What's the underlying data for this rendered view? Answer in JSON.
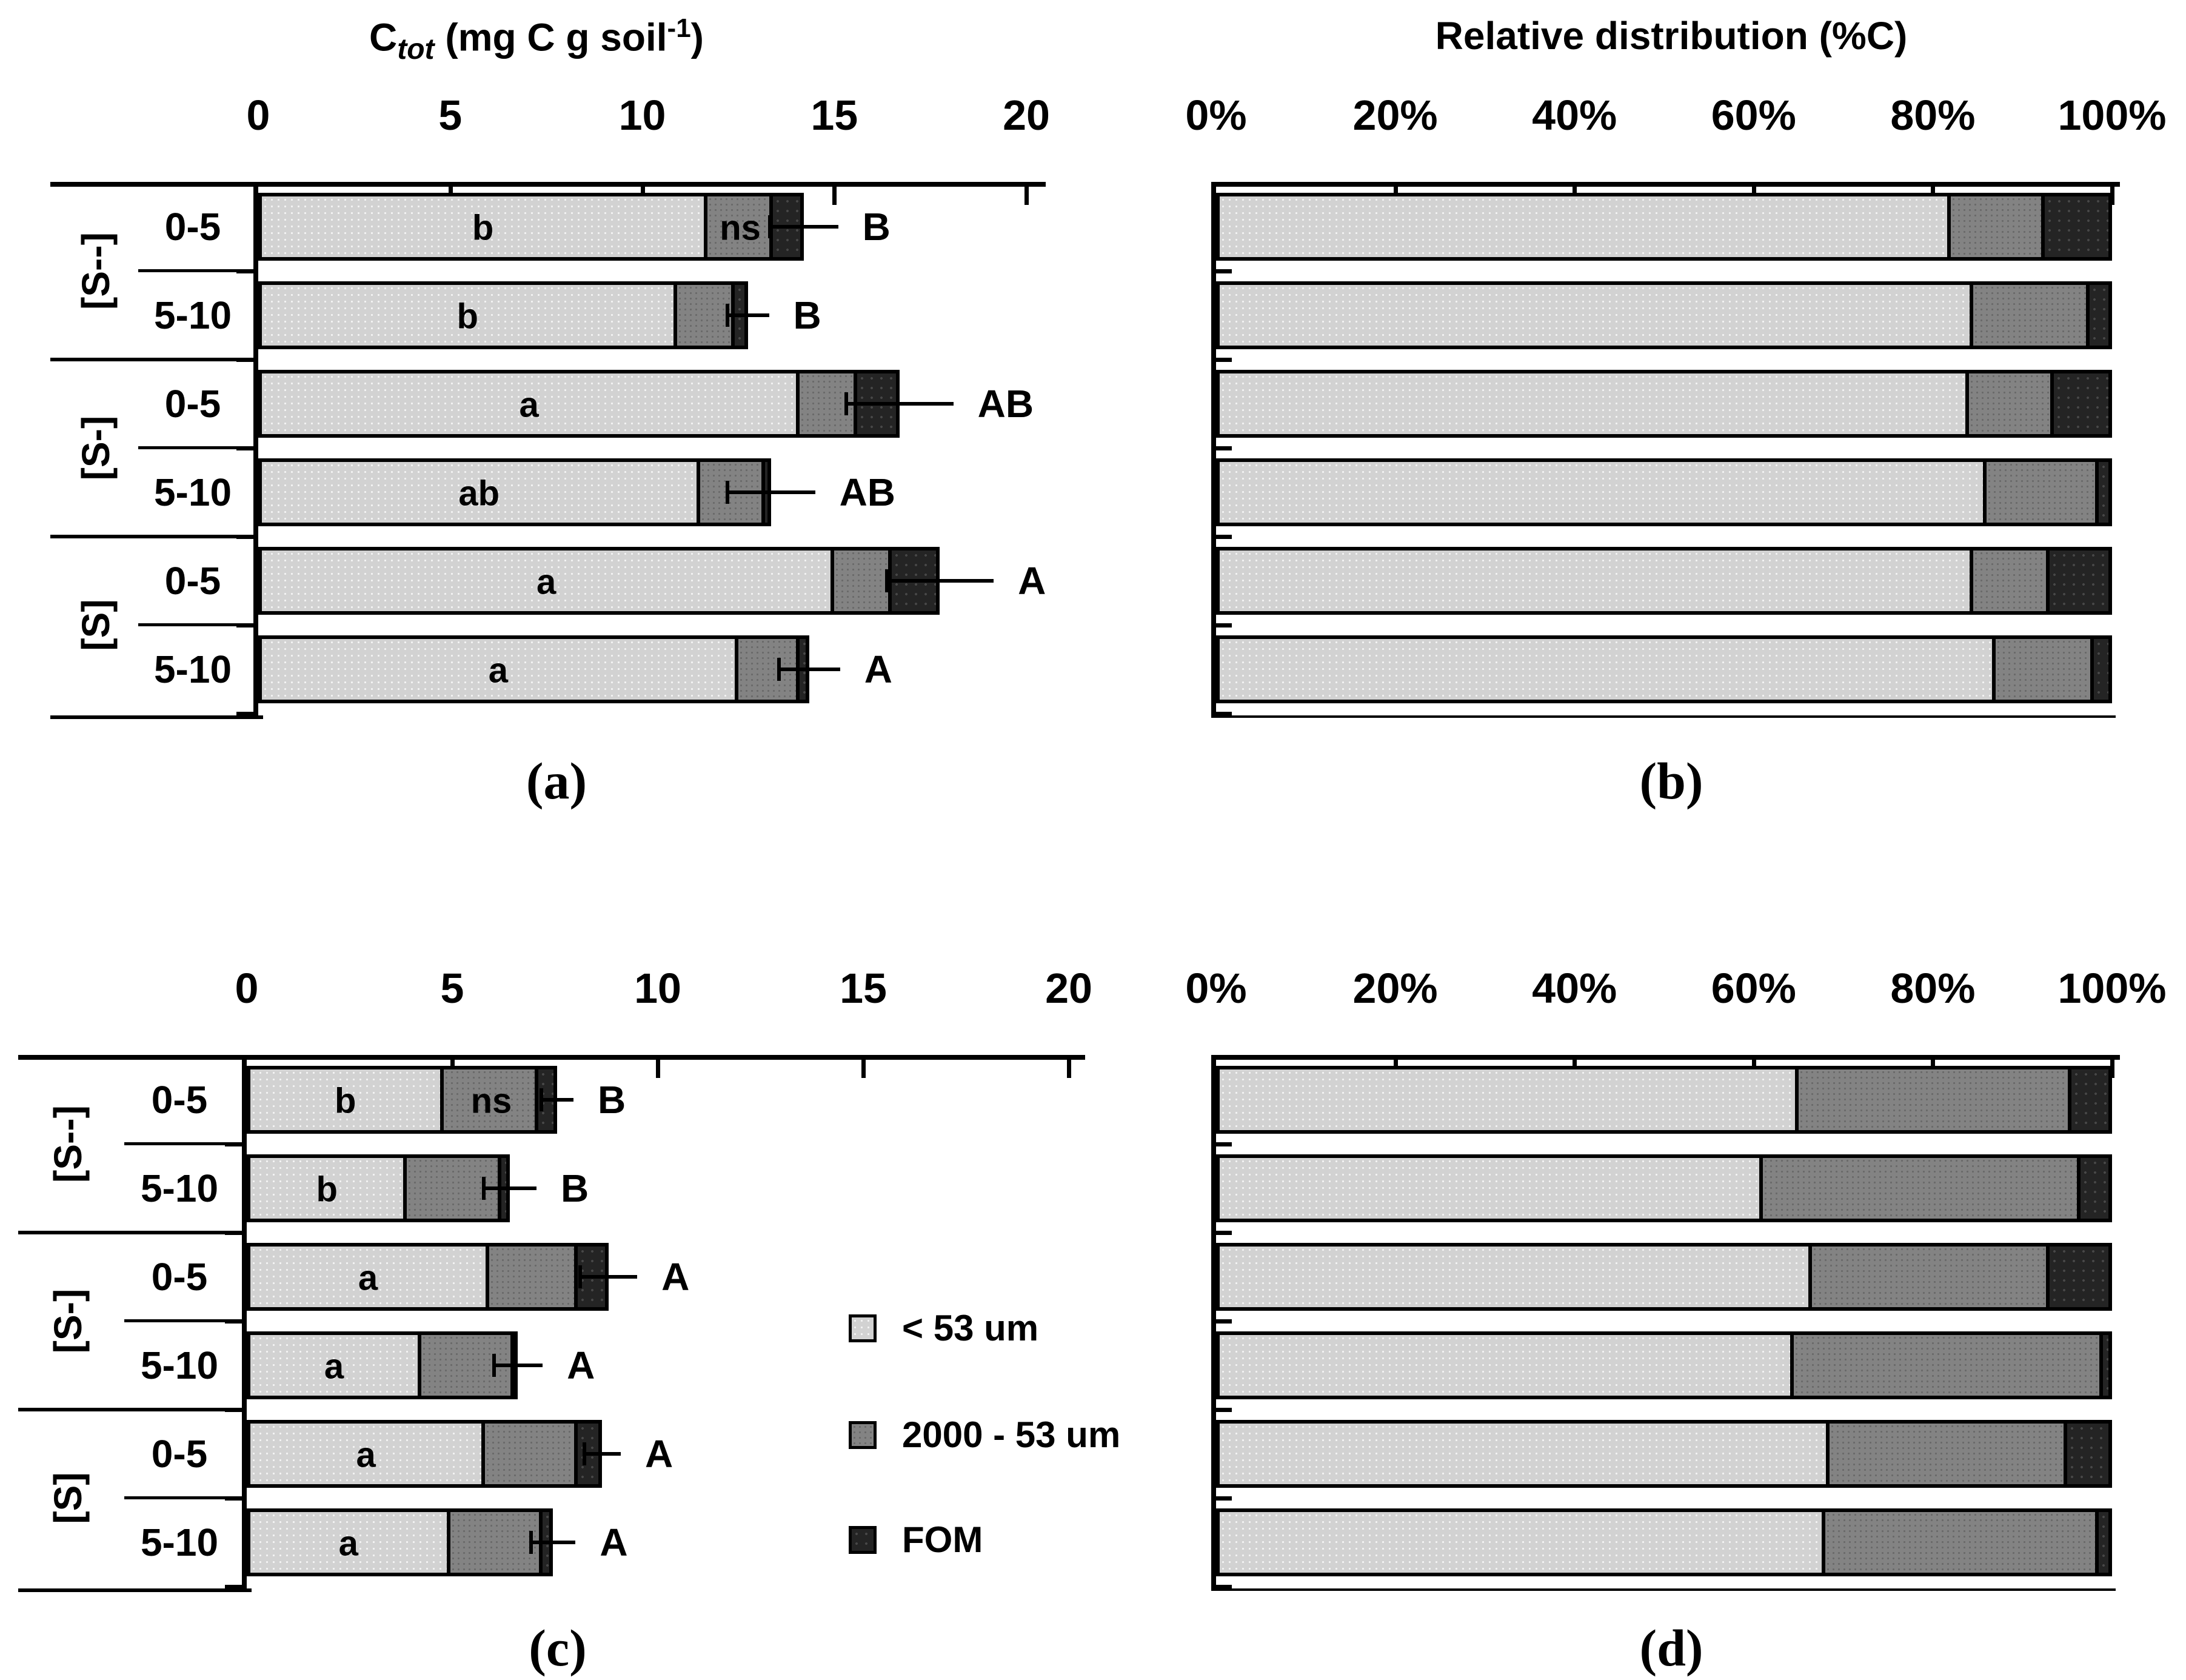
{
  "colors": {
    "light": "#d2d2d2",
    "mid": "#838383",
    "dark": "#242424",
    "axis": "#000000"
  },
  "titles": {
    "a": {
      "base": "C",
      "sub": "tot",
      "unit": " (mg C g soil",
      "sup": "-1",
      "close": ")"
    },
    "b": "Relative distribution (%C)"
  },
  "row_labels": {
    "groups": [
      "[S--]",
      "[S-]",
      "[S]"
    ],
    "depths": [
      "0-5",
      "5-10"
    ]
  },
  "legend": {
    "items": [
      {
        "key": "light",
        "label": "< 53 um"
      },
      {
        "key": "mid",
        "label": "2000 - 53 um"
      },
      {
        "key": "dark",
        "label": "FOM"
      }
    ]
  },
  "chart_data": [
    {
      "id": "a",
      "tag": "(a)",
      "type": "bar",
      "stacked": true,
      "orientation": "horizontal",
      "title": "Ctot (mg C g soil-1)",
      "xlim": [
        0,
        20
      ],
      "tick_values": [
        0,
        5,
        10,
        15,
        20
      ],
      "tick_labels": [
        "0",
        "5",
        "10",
        "15",
        "20"
      ],
      "categories": [
        "[S--] 0-5",
        "[S--] 5-10",
        "[S-] 0-5",
        "[S-] 5-10",
        "[S] 0-5",
        "[S] 5-10"
      ],
      "series": [
        {
          "name": "< 53 um",
          "values": [
            11.7,
            10.9,
            14.1,
            11.5,
            15.0,
            12.5
          ]
        },
        {
          "name": "2000 - 53 um",
          "values": [
            1.7,
            1.5,
            1.5,
            1.7,
            1.5,
            1.6
          ]
        },
        {
          "name": "FOM",
          "values": [
            0.8,
            0.35,
            1.1,
            0.15,
            1.25,
            0.25
          ]
        }
      ],
      "errors": [
        0.9,
        0.55,
        1.4,
        1.15,
        1.4,
        0.8
      ],
      "bar_letters": [
        [
          "b",
          "ns"
        ],
        [
          "b"
        ],
        [
          "a"
        ],
        [
          "ab"
        ],
        [
          "a"
        ],
        [
          "a"
        ]
      ],
      "sig_letters": [
        "B",
        "B",
        "AB",
        "AB",
        "A",
        "A"
      ]
    },
    {
      "id": "b",
      "tag": "(b)",
      "type": "bar",
      "stacked": true,
      "orientation": "horizontal",
      "title": "Relative distribution (%C)",
      "xlim": [
        0,
        100
      ],
      "tick_values": [
        0,
        20,
        40,
        60,
        80,
        100
      ],
      "tick_labels": [
        "0%",
        "20%",
        "40%",
        "60%",
        "80%",
        "100%"
      ],
      "categories": [
        "[S--] 0-5",
        "[S--] 5-10",
        "[S-] 0-5",
        "[S-] 5-10",
        "[S] 0-5",
        "[S] 5-10"
      ],
      "series": [
        {
          "name": "< 53 um",
          "values": [
            82,
            84.5,
            84,
            86,
            84.5,
            87
          ]
        },
        {
          "name": "2000 - 53 um",
          "values": [
            10.5,
            13,
            9.5,
            12.5,
            8.5,
            11
          ]
        },
        {
          "name": "FOM",
          "values": [
            7.5,
            2.5,
            6.5,
            1.5,
            7,
            2
          ]
        }
      ],
      "errors": [],
      "bar_letters": [],
      "sig_letters": []
    },
    {
      "id": "c",
      "tag": "(c)",
      "type": "bar",
      "stacked": true,
      "orientation": "horizontal",
      "title": "",
      "xlim": [
        0,
        20
      ],
      "tick_values": [
        0,
        5,
        10,
        15,
        20
      ],
      "tick_labels": [
        "0",
        "5",
        "10",
        "15",
        "20"
      ],
      "categories": [
        "[S--] 0-5",
        "[S--] 5-10",
        "[S-] 0-5",
        "[S-] 5-10",
        "[S] 0-5",
        "[S] 5-10"
      ],
      "series": [
        {
          "name": "< 53 um",
          "values": [
            4.8,
            3.9,
            5.9,
            4.25,
            5.8,
            4.95
          ]
        },
        {
          "name": "2000 - 53 um",
          "values": [
            2.3,
            2.3,
            2.15,
            2.25,
            2.25,
            2.25
          ]
        },
        {
          "name": "FOM",
          "values": [
            0.45,
            0.2,
            0.75,
            0.1,
            0.6,
            0.25
          ]
        }
      ],
      "errors": [
        0.4,
        0.65,
        0.7,
        0.6,
        0.45,
        0.55
      ],
      "bar_letters": [
        [
          "b",
          "ns"
        ],
        [
          "b"
        ],
        [
          "a"
        ],
        [
          "a"
        ],
        [
          "a"
        ],
        [
          "a"
        ]
      ],
      "sig_letters": [
        "B",
        "B",
        "A",
        "A",
        "A",
        "A"
      ]
    },
    {
      "id": "d",
      "tag": "(d)",
      "type": "bar",
      "stacked": true,
      "orientation": "horizontal",
      "title": "",
      "xlim": [
        0,
        100
      ],
      "tick_values": [
        0,
        20,
        40,
        60,
        80,
        100
      ],
      "tick_labels": [
        "0%",
        "20%",
        "40%",
        "60%",
        "80%",
        "100%"
      ],
      "categories": [
        "[S--] 0-5",
        "[S--] 5-10",
        "[S-] 0-5",
        "[S-] 5-10",
        "[S] 0-5",
        "[S] 5-10"
      ],
      "series": [
        {
          "name": "< 53 um",
          "values": [
            65,
            61,
            66.5,
            64.5,
            68.5,
            68
          ]
        },
        {
          "name": "2000 - 53 um",
          "values": [
            30.5,
            35.5,
            26.5,
            34.5,
            26.5,
            30.5
          ]
        },
        {
          "name": "FOM",
          "values": [
            4.5,
            3.5,
            7,
            1,
            5,
            1.5
          ]
        }
      ],
      "errors": [],
      "bar_letters": [],
      "sig_letters": []
    }
  ]
}
